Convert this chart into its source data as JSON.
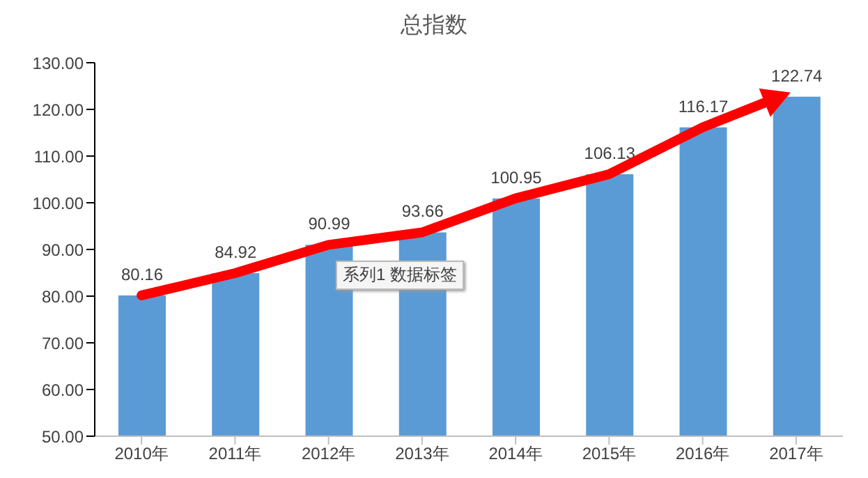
{
  "chart_data": {
    "type": "bar",
    "title": "总指数",
    "categories": [
      "2010年",
      "2011年",
      "2012年",
      "2013年",
      "2014年",
      "2015年",
      "2016年",
      "2017年"
    ],
    "values": [
      80.16,
      84.92,
      90.99,
      93.66,
      100.95,
      106.13,
      116.17,
      122.74
    ],
    "color": "#5b9bd5",
    "ylim": [
      50,
      130
    ],
    "yticks": [
      {
        "value": 50,
        "label": "50.00"
      },
      {
        "value": 60,
        "label": "60.00"
      },
      {
        "value": 70,
        "label": "70.00"
      },
      {
        "value": 80,
        "label": "80.00"
      },
      {
        "value": 90,
        "label": "90.00"
      },
      {
        "value": 100,
        "label": "100.00"
      },
      {
        "value": 110,
        "label": "110.00"
      },
      {
        "value": 120,
        "label": "120.00"
      },
      {
        "value": 130,
        "label": "130.00"
      }
    ],
    "data_labels": true,
    "grid": false,
    "legend": false,
    "annotations": [
      "系列1 数据标签"
    ]
  }
}
